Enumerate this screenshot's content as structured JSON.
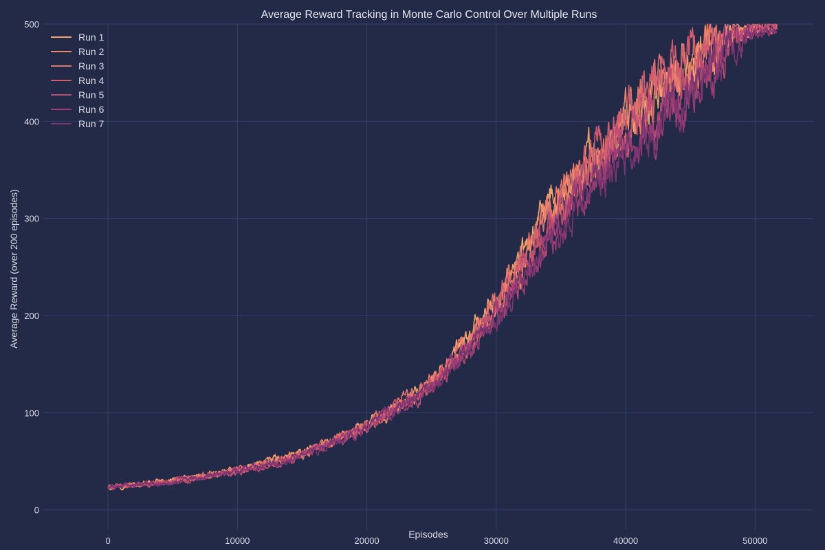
{
  "chart_data": {
    "type": "line",
    "title": "Average Reward Tracking in Monte Carlo Control Over Multiple Runs",
    "xlabel": "Episodes",
    "ylabel": "Average Reward (over 200 episodes)",
    "xlim": [
      -5000,
      54500
    ],
    "ylim": [
      -20,
      500
    ],
    "xticks": [
      0,
      10000,
      20000,
      30000,
      40000,
      50000
    ],
    "yticks": [
      0,
      100,
      200,
      300,
      400,
      500
    ],
    "grid": true,
    "legend_position": "top-left",
    "series": [
      {
        "name": "Run 1",
        "color": "#f2a26c",
        "x": [
          0,
          5000,
          10000,
          15000,
          20000,
          25000,
          28000,
          30000,
          32000,
          34000,
          36000,
          38000,
          40000,
          42000,
          44000,
          46000,
          48000,
          50000,
          51700
        ],
        "values": [
          24,
          30,
          41,
          58,
          88,
          132,
          178,
          218,
          262,
          306,
          340,
          372,
          398,
          424,
          448,
          466,
          486,
          496,
          496
        ]
      },
      {
        "name": "Run 2",
        "color": "#ee8a6a",
        "x": [
          0,
          5000,
          10000,
          15000,
          20000,
          25000,
          28000,
          30000,
          32000,
          34000,
          36000,
          38000,
          40000,
          42000,
          44000,
          46000,
          48000,
          50000,
          51700
        ],
        "values": [
          23,
          30,
          41,
          57,
          86,
          130,
          175,
          214,
          256,
          300,
          336,
          368,
          396,
          420,
          444,
          462,
          484,
          495,
          497
        ]
      },
      {
        "name": "Run 3",
        "color": "#e4736b",
        "x": [
          0,
          5000,
          10000,
          15000,
          20000,
          25000,
          28000,
          30000,
          32000,
          34000,
          36000,
          38000,
          40000,
          42000,
          44000,
          46000,
          48000,
          50000,
          51700
        ],
        "values": [
          23,
          29,
          40,
          57,
          87,
          131,
          176,
          216,
          258,
          302,
          338,
          370,
          398,
          424,
          450,
          470,
          490,
          497,
          497
        ]
      },
      {
        "name": "Run 4",
        "color": "#d15c70",
        "x": [
          0,
          5000,
          10000,
          15000,
          20000,
          25000,
          28000,
          30000,
          32000,
          34000,
          36000,
          38000,
          40000,
          42000,
          44000,
          46000,
          48000,
          50000,
          51700
        ],
        "values": [
          24,
          30,
          40,
          56,
          86,
          128,
          172,
          210,
          252,
          296,
          334,
          368,
          400,
          428,
          458,
          476,
          492,
          498,
          498
        ]
      },
      {
        "name": "Run 5",
        "color": "#bb4b73",
        "x": [
          0,
          5000,
          10000,
          15000,
          20000,
          25000,
          28000,
          30000,
          32000,
          34000,
          36000,
          38000,
          40000,
          42000,
          44000,
          46000,
          48000,
          50000,
          51700
        ],
        "values": [
          23,
          29,
          39,
          55,
          84,
          126,
          168,
          204,
          244,
          286,
          322,
          356,
          384,
          408,
          432,
          456,
          480,
          494,
          496
        ]
      },
      {
        "name": "Run 6",
        "color": "#9d3c74",
        "x": [
          0,
          5000,
          10000,
          15000,
          20000,
          25000,
          28000,
          30000,
          32000,
          34000,
          36000,
          38000,
          40000,
          42000,
          44000,
          46000,
          48000,
          50000,
          51700
        ],
        "values": [
          23,
          29,
          40,
          56,
          85,
          127,
          168,
          200,
          236,
          274,
          312,
          344,
          370,
          384,
          404,
          436,
          470,
          490,
          494
        ]
      },
      {
        "name": "Run 7",
        "color": "#7a3571",
        "x": [
          0,
          5000,
          10000,
          15000,
          20000,
          25000,
          28000,
          30000,
          32000,
          34000,
          36000,
          38000,
          40000,
          42000,
          44000,
          46000,
          48000,
          50000,
          51700
        ],
        "values": [
          23,
          29,
          39,
          55,
          84,
          125,
          166,
          198,
          232,
          270,
          306,
          340,
          366,
          390,
          418,
          448,
          476,
          492,
          495
        ]
      }
    ]
  }
}
